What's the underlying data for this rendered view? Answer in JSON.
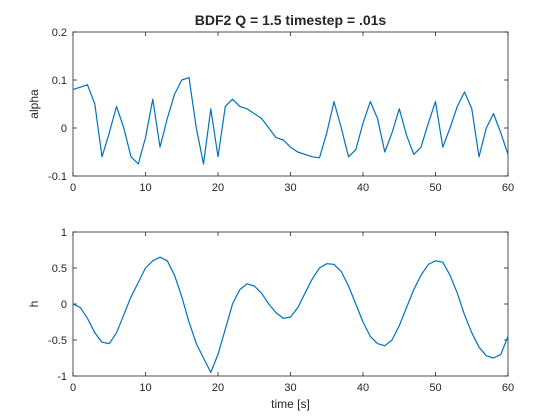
{
  "chart_data": [
    {
      "type": "line",
      "title": "BDF2 Q = 1.5 timestep = .01s",
      "xlabel": "",
      "ylabel": "alpha",
      "xlim": [
        0,
        60
      ],
      "ylim": [
        -0.1,
        0.2
      ],
      "xticks": [
        0,
        10,
        20,
        30,
        40,
        50,
        60
      ],
      "xtick_labels": [
        "0",
        "10",
        "20",
        "30",
        "40",
        "50",
        "60"
      ],
      "yticks": [
        -0.1,
        0,
        0.1,
        0.2
      ],
      "ytick_labels": [
        "-0.1",
        "0",
        "0.1",
        "0.2"
      ],
      "color": "#0072bd",
      "series": [
        {
          "name": "alpha",
          "x": [
            0,
            1,
            2,
            3,
            4,
            5,
            6,
            7,
            8,
            9,
            10,
            11,
            12,
            13,
            14,
            15,
            16,
            17,
            18,
            19,
            20,
            21,
            22,
            23,
            24,
            25,
            26,
            27,
            28,
            29,
            30,
            31,
            32,
            33,
            34,
            35,
            36,
            37,
            38,
            39,
            40,
            41,
            42,
            43,
            44,
            45,
            46,
            47,
            48,
            49,
            50,
            51,
            52,
            53,
            54,
            55,
            56,
            57,
            58,
            59,
            60
          ],
          "y": [
            0.08,
            0.085,
            0.09,
            0.05,
            -0.06,
            -0.01,
            0.045,
            0.0,
            -0.06,
            -0.075,
            -0.02,
            0.06,
            -0.04,
            0.02,
            0.07,
            0.1,
            0.105,
            0.0,
            -0.075,
            0.04,
            -0.06,
            0.045,
            0.06,
            0.045,
            0.04,
            0.03,
            0.02,
            0.0,
            -0.02,
            -0.025,
            -0.04,
            -0.05,
            -0.055,
            -0.06,
            -0.062,
            -0.01,
            0.055,
            0.0,
            -0.06,
            -0.045,
            0.01,
            0.055,
            0.02,
            -0.05,
            -0.01,
            0.04,
            -0.015,
            -0.055,
            -0.04,
            0.01,
            0.055,
            -0.04,
            0.0,
            0.045,
            0.075,
            0.04,
            -0.06,
            0.0,
            0.03,
            -0.01,
            -0.055
          ]
        }
      ]
    },
    {
      "type": "line",
      "title": "",
      "xlabel": "time [s]",
      "ylabel": "h",
      "xlim": [
        0,
        60
      ],
      "ylim": [
        -1,
        1
      ],
      "xticks": [
        0,
        10,
        20,
        30,
        40,
        50,
        60
      ],
      "xtick_labels": [
        "0",
        "10",
        "20",
        "30",
        "40",
        "50",
        "60"
      ],
      "yticks": [
        -1,
        -0.5,
        0,
        0.5,
        1
      ],
      "ytick_labels": [
        "-1",
        "-0.5",
        "0",
        "0.5",
        "1"
      ],
      "color": "#0072bd",
      "series": [
        {
          "name": "h",
          "x": [
            0,
            1,
            2,
            3,
            4,
            5,
            6,
            7,
            8,
            9,
            10,
            11,
            12,
            13,
            14,
            15,
            16,
            17,
            18,
            19,
            20,
            21,
            22,
            23,
            24,
            25,
            26,
            27,
            28,
            29,
            30,
            31,
            32,
            33,
            34,
            35,
            36,
            37,
            38,
            39,
            40,
            41,
            42,
            43,
            44,
            45,
            46,
            47,
            48,
            49,
            50,
            51,
            52,
            53,
            54,
            55,
            56,
            57,
            58,
            59,
            60
          ],
          "y": [
            0.0,
            -0.05,
            -0.2,
            -0.4,
            -0.53,
            -0.55,
            -0.4,
            -0.15,
            0.1,
            0.3,
            0.5,
            0.6,
            0.65,
            0.6,
            0.4,
            0.1,
            -0.25,
            -0.55,
            -0.75,
            -0.95,
            -0.7,
            -0.35,
            0.0,
            0.2,
            0.28,
            0.25,
            0.15,
            0.0,
            -0.12,
            -0.2,
            -0.18,
            -0.05,
            0.15,
            0.35,
            0.5,
            0.56,
            0.55,
            0.45,
            0.25,
            0.0,
            -0.25,
            -0.45,
            -0.55,
            -0.58,
            -0.5,
            -0.3,
            -0.05,
            0.2,
            0.4,
            0.55,
            0.6,
            0.58,
            0.4,
            0.15,
            -0.15,
            -0.4,
            -0.6,
            -0.72,
            -0.75,
            -0.7,
            -0.45
          ]
        }
      ]
    }
  ]
}
